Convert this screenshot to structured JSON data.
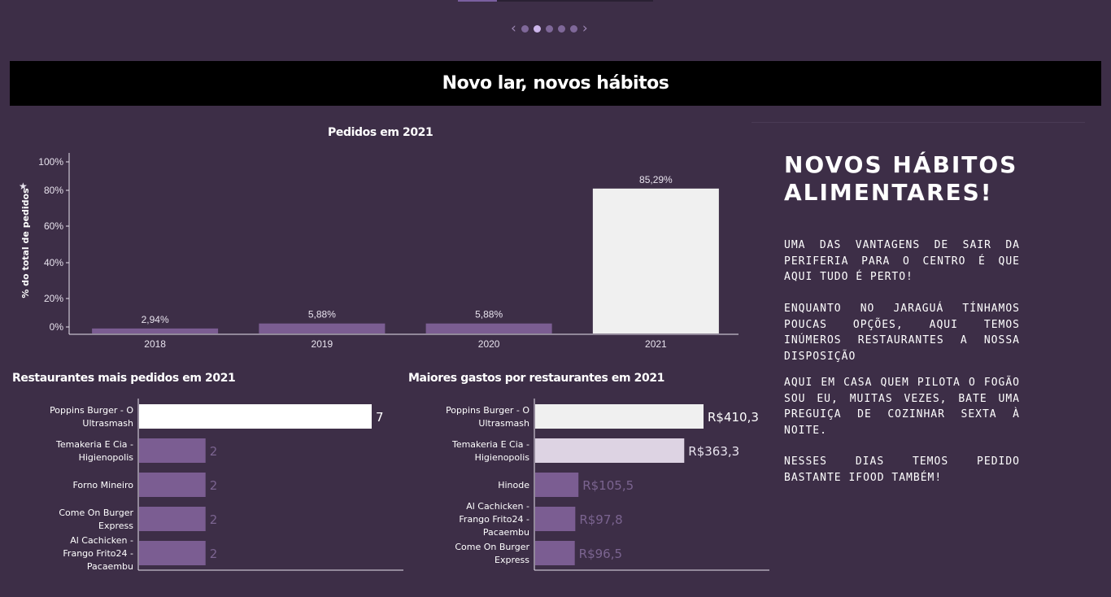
{
  "nav": {
    "dot_count": 5,
    "active_dot": 1,
    "prev_icon": "chevron-left-icon",
    "next_icon": "chevron-right-icon",
    "prev": "‹",
    "next": "›"
  },
  "banner": {
    "title": "Novo lar, novos hábitos"
  },
  "colors": {
    "background": "#3d2e47",
    "bar_purple": "#7b5d92",
    "bar_highlight": "#f0f0f0",
    "bar_light": "#ddd3e3",
    "muted_label": "#7b6490"
  },
  "chart_data": [
    {
      "type": "bar",
      "title": "Pedidos em 2021",
      "ylabel": "% do total de pedidos",
      "categories": [
        "2018",
        "2019",
        "2020",
        "2021"
      ],
      "values": [
        2.94,
        5.88,
        5.88,
        85.29
      ],
      "data_labels": [
        "2,94%",
        "5,88%",
        "5,88%",
        "85,29%"
      ],
      "ylim": [
        0,
        100
      ],
      "yticks": [
        "0%",
        "20%",
        "40%",
        "60%",
        "80%",
        "100%"
      ],
      "highlight_index": 3
    },
    {
      "type": "bar",
      "orientation": "horizontal",
      "title": "Restaurantes mais pedidos em 2021",
      "categories": [
        "Poppins Burger - O Ultrasmash",
        "Temakeria E Cia - Higienopolis",
        "Forno Mineiro",
        "Come On Burger Express",
        "Al Cachicken - Frango Frito24 - Pacaembu"
      ],
      "values": [
        7,
        2,
        2,
        2,
        2
      ],
      "data_labels": [
        "7",
        "2",
        "2",
        "2",
        "2"
      ]
    },
    {
      "type": "bar",
      "orientation": "horizontal",
      "title": "Maiores gastos por restaurantes em 2021",
      "categories": [
        "Poppins Burger - O Ultrasmash",
        "Temakeria E Cia - Higienopolis",
        "Hinode",
        "Al Cachicken - Frango Frito24 - Pacaembu",
        "Come On Burger Express"
      ],
      "values": [
        410.3,
        363.3,
        105.5,
        97.8,
        96.5
      ],
      "data_labels": [
        "R$410,3",
        "R$363,3",
        "R$105,5",
        "R$97,8",
        "R$96,5"
      ]
    }
  ],
  "side": {
    "heading": "NOVOS HÁBITOS ALIMENTARES!",
    "paragraphs": [
      "UMA DAS VANTAGENS DE SAIR DA PERIFERIA PARA O CENTRO É QUE AQUI TUDO É PERTO!",
      "ENQUANTO NO JARAGUÁ TÍNHAMOS POUCAS OPÇÕES, AQUI TEMOS INÚMEROS RESTAURANTES A NOSSA DISPOSIÇÃO",
      "AQUI EM CASA QUEM PILOTA O FOGÃO SOU EU, MUITAS VEZES, BATE UMA PREGUIÇA DE COZINHAR SEXTA À NOITE.",
      "NESSES DIAS TEMOS PEDIDO BASTANTE IFOOD TAMBÉM!"
    ]
  }
}
